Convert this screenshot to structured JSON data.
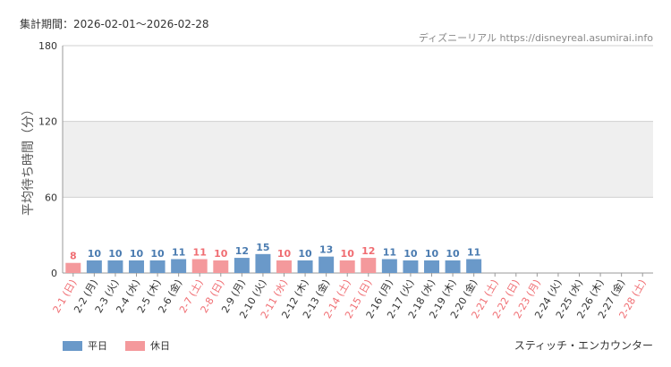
{
  "header": {
    "period": "集計期間：2026-02-01～2026-02-28",
    "source": "ディズニーリアル https://disneyreal.asumirai.info"
  },
  "legend": {
    "weekday": {
      "label": "平日",
      "color": "#6a99c9"
    },
    "holiday": {
      "label": "休日",
      "color": "#f4999c"
    }
  },
  "footer": {
    "attraction": "スティッチ・エンカウンター"
  },
  "chart_data": {
    "type": "bar",
    "ylabel": "平均待ち時間（分）",
    "ylim": [
      0,
      180
    ],
    "yticks": [
      0,
      60,
      120,
      180
    ],
    "shaded_band": [
      60,
      120
    ],
    "categories": [
      "2-1 (日)",
      "2-2 (月)",
      "2-3 (火)",
      "2-4 (水)",
      "2-5 (木)",
      "2-6 (金)",
      "2-7 (土)",
      "2-8 (日)",
      "2-9 (月)",
      "2-10 (火)",
      "2-11 (水)",
      "2-12 (木)",
      "2-13 (金)",
      "2-14 (土)",
      "2-15 (日)",
      "2-16 (月)",
      "2-17 (火)",
      "2-18 (水)",
      "2-19 (木)",
      "2-20 (金)",
      "2-21 (土)",
      "2-22 (日)",
      "2-23 (月)",
      "2-24 (火)",
      "2-25 (水)",
      "2-26 (木)",
      "2-27 (金)",
      "2-28 (土)"
    ],
    "values": [
      8,
      10,
      10,
      10,
      10,
      11,
      11,
      10,
      12,
      15,
      10,
      10,
      13,
      10,
      12,
      11,
      10,
      10,
      10,
      11,
      null,
      null,
      null,
      null,
      null,
      null,
      null,
      null
    ],
    "holiday": [
      true,
      false,
      false,
      false,
      false,
      false,
      true,
      true,
      false,
      false,
      true,
      false,
      false,
      true,
      true,
      false,
      false,
      false,
      false,
      false,
      true,
      true,
      true,
      false,
      false,
      false,
      false,
      true
    ],
    "colors": {
      "weekday": "#6a99c9",
      "holiday": "#f4999c",
      "weekday_text": "#4a7bb0",
      "holiday_text": "#f06d72",
      "label_weekday": "#333333",
      "label_holiday": "#f06d72"
    }
  }
}
